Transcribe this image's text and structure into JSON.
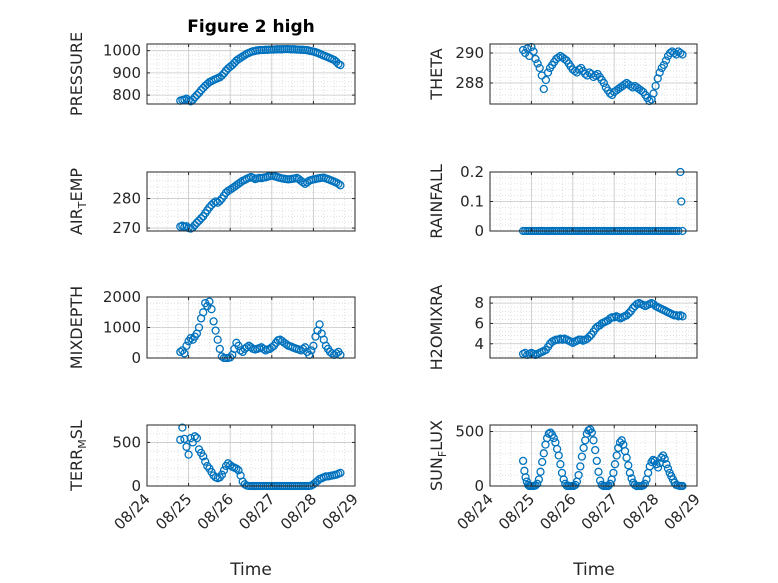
{
  "figure": {
    "title": "Figure 2 high",
    "background": "#ffffff",
    "marker_color": "#0072BD",
    "grid": true,
    "time_tick_labels": [
      "08/24",
      "08/25",
      "08/26",
      "08/27",
      "08/28",
      "08/29"
    ],
    "xlabel": "Time"
  },
  "chart_data": [
    {
      "type": "scatter",
      "name": "pressure",
      "ylabel": "PRESSURE",
      "ylim": [
        760,
        1030
      ],
      "yticks": [
        800,
        900,
        1000
      ],
      "x": [
        0.8,
        0.85,
        0.9,
        0.95,
        1.0,
        1.05,
        1.1,
        1.15,
        1.2,
        1.25,
        1.3,
        1.35,
        1.4,
        1.45,
        1.5,
        1.55,
        1.6,
        1.65,
        1.7,
        1.75,
        1.8,
        1.85,
        1.9,
        1.95,
        2.0,
        2.05,
        2.1,
        2.15,
        2.2,
        2.25,
        2.3,
        2.35,
        2.4,
        2.45,
        2.5,
        2.55,
        2.6,
        2.65,
        2.7,
        2.75,
        2.8,
        2.85,
        2.9,
        2.95,
        3.0,
        3.05,
        3.1,
        3.15,
        3.2,
        3.25,
        3.3,
        3.35,
        3.4,
        3.45,
        3.5,
        3.55,
        3.6,
        3.65,
        3.7,
        3.75,
        3.8,
        3.85,
        3.9,
        3.95,
        4.0,
        4.05,
        4.1,
        4.15,
        4.2,
        4.25,
        4.3,
        4.35,
        4.4,
        4.45,
        4.5,
        4.55,
        4.6,
        4.65
      ],
      "y": [
        775,
        778,
        780,
        784,
        776,
        772,
        779,
        790,
        800,
        810,
        822,
        832,
        842,
        850,
        858,
        863,
        868,
        872,
        876,
        880,
        888,
        898,
        910,
        920,
        928,
        935,
        945,
        955,
        962,
        968,
        974,
        980,
        986,
        990,
        994,
        997,
        999,
        1001,
        1002,
        1003,
        1003,
        1004,
        1004,
        1005,
        1005,
        1005,
        1006,
        1006,
        1006,
        1006,
        1007,
        1007,
        1007,
        1006,
        1006,
        1006,
        1005,
        1005,
        1004,
        1004,
        1003,
        1002,
        1000,
        998,
        996,
        993,
        990,
        986,
        982,
        978,
        974,
        970,
        966,
        962,
        958,
        950,
        940,
        935
      ]
    },
    {
      "type": "scatter",
      "name": "theta",
      "ylabel": "THETA",
      "ylim": [
        286.6,
        290.6
      ],
      "yticks": [
        288,
        290
      ],
      "x": [
        0.8,
        0.85,
        0.9,
        0.95,
        1.0,
        1.05,
        1.1,
        1.15,
        1.2,
        1.25,
        1.3,
        1.35,
        1.4,
        1.45,
        1.5,
        1.55,
        1.6,
        1.65,
        1.7,
        1.75,
        1.8,
        1.85,
        1.9,
        1.95,
        2.0,
        2.05,
        2.1,
        2.15,
        2.2,
        2.25,
        2.3,
        2.35,
        2.4,
        2.45,
        2.5,
        2.55,
        2.6,
        2.65,
        2.7,
        2.75,
        2.8,
        2.85,
        2.9,
        2.95,
        3.0,
        3.05,
        3.1,
        3.15,
        3.2,
        3.25,
        3.3,
        3.35,
        3.4,
        3.45,
        3.5,
        3.55,
        3.6,
        3.65,
        3.7,
        3.75,
        3.8,
        3.85,
        3.9,
        3.95,
        4.0,
        4.05,
        4.1,
        4.15,
        4.2,
        4.25,
        4.3,
        4.35,
        4.4,
        4.45,
        4.5,
        4.55,
        4.6,
        4.65
      ],
      "y": [
        290.2,
        290.0,
        290.3,
        289.8,
        290.4,
        290.1,
        289.6,
        289.3,
        289.0,
        288.5,
        287.6,
        288.2,
        288.7,
        289.0,
        289.2,
        289.4,
        289.6,
        289.7,
        289.8,
        289.7,
        289.6,
        289.5,
        289.3,
        289.1,
        288.9,
        288.8,
        288.7,
        288.9,
        289.0,
        288.8,
        288.6,
        288.5,
        288.7,
        288.6,
        288.4,
        288.5,
        288.6,
        288.4,
        288.2,
        288.0,
        287.7,
        287.5,
        287.3,
        287.2,
        287.4,
        287.5,
        287.6,
        287.7,
        287.8,
        287.9,
        288.0,
        287.9,
        287.8,
        287.7,
        287.8,
        287.7,
        287.6,
        287.5,
        287.4,
        287.2,
        287.0,
        286.8,
        286.9,
        287.3,
        287.8,
        288.3,
        288.7,
        289.0,
        289.2,
        289.5,
        289.8,
        290.0,
        290.1,
        290.0,
        289.9,
        290.1,
        290.0,
        289.9
      ]
    },
    {
      "type": "scatter",
      "name": "air_temp",
      "ylabel": "AIR_TEMP",
      "ylim": [
        269,
        289
      ],
      "yticks": [
        270,
        280
      ],
      "x": [
        0.8,
        0.85,
        0.9,
        0.95,
        1.0,
        1.05,
        1.1,
        1.15,
        1.2,
        1.25,
        1.3,
        1.35,
        1.4,
        1.45,
        1.5,
        1.55,
        1.6,
        1.65,
        1.7,
        1.75,
        1.8,
        1.85,
        1.9,
        1.95,
        2.0,
        2.05,
        2.1,
        2.15,
        2.2,
        2.25,
        2.3,
        2.35,
        2.4,
        2.45,
        2.5,
        2.55,
        2.6,
        2.65,
        2.7,
        2.75,
        2.8,
        2.85,
        2.9,
        2.95,
        3.0,
        3.05,
        3.1,
        3.15,
        3.2,
        3.25,
        3.3,
        3.35,
        3.4,
        3.45,
        3.5,
        3.55,
        3.6,
        3.65,
        3.7,
        3.75,
        3.8,
        3.85,
        3.9,
        3.95,
        4.0,
        4.05,
        4.1,
        4.15,
        4.2,
        4.25,
        4.3,
        4.35,
        4.4,
        4.45,
        4.5,
        4.55,
        4.6,
        4.65
      ],
      "y": [
        270.5,
        270.8,
        270.4,
        270.6,
        270.0,
        269.8,
        270.2,
        271.0,
        271.8,
        272.5,
        273.3,
        274.0,
        275.0,
        276.0,
        277.0,
        277.8,
        278.5,
        279.0,
        278.6,
        279.2,
        280.0,
        281.0,
        282.0,
        282.6,
        283.0,
        283.5,
        284.0,
        284.5,
        285.0,
        285.5,
        286.0,
        286.3,
        286.7,
        287.0,
        287.3,
        287.0,
        286.6,
        286.8,
        287.0,
        286.9,
        287.1,
        287.2,
        287.4,
        287.6,
        287.8,
        287.6,
        287.4,
        287.2,
        287.0,
        286.8,
        286.7,
        286.6,
        286.5,
        286.6,
        286.7,
        286.8,
        287.0,
        286.6,
        286.0,
        285.5,
        285.0,
        285.5,
        286.0,
        286.3,
        286.5,
        286.6,
        286.8,
        286.9,
        287.0,
        287.1,
        286.8,
        286.6,
        286.3,
        286.0,
        285.7,
        285.4,
        285.0,
        284.5
      ]
    },
    {
      "type": "scatter",
      "name": "rainfall",
      "ylabel": "RAINFALL",
      "ylim": [
        0,
        0.2
      ],
      "yticks": [
        0,
        0.1,
        0.2
      ],
      "x": [
        0.8,
        0.85,
        0.9,
        0.95,
        1.0,
        1.05,
        1.1,
        1.15,
        1.2,
        1.25,
        1.3,
        1.35,
        1.4,
        1.45,
        1.5,
        1.55,
        1.6,
        1.65,
        1.7,
        1.75,
        1.8,
        1.85,
        1.9,
        1.95,
        2.0,
        2.05,
        2.1,
        2.15,
        2.2,
        2.25,
        2.3,
        2.35,
        2.4,
        2.45,
        2.5,
        2.55,
        2.6,
        2.65,
        2.7,
        2.75,
        2.8,
        2.85,
        2.9,
        2.95,
        3.0,
        3.05,
        3.1,
        3.15,
        3.2,
        3.25,
        3.3,
        3.35,
        3.4,
        3.45,
        3.5,
        3.55,
        3.6,
        3.65,
        3.7,
        3.75,
        3.8,
        3.85,
        3.9,
        3.95,
        4.0,
        4.05,
        4.1,
        4.15,
        4.2,
        4.25,
        4.3,
        4.35,
        4.4,
        4.45,
        4.5,
        4.55,
        4.6,
        4.62,
        4.65
      ],
      "y": [
        0,
        0,
        0,
        0,
        0,
        0,
        0,
        0,
        0,
        0,
        0,
        0,
        0,
        0,
        0,
        0,
        0,
        0,
        0,
        0,
        0,
        0,
        0,
        0,
        0,
        0,
        0,
        0,
        0,
        0,
        0,
        0,
        0,
        0,
        0,
        0,
        0,
        0,
        0,
        0,
        0,
        0,
        0,
        0,
        0,
        0,
        0,
        0,
        0,
        0,
        0,
        0,
        0,
        0,
        0,
        0,
        0,
        0,
        0,
        0,
        0,
        0,
        0,
        0,
        0,
        0,
        0,
        0,
        0,
        0,
        0,
        0,
        0,
        0,
        0,
        0,
        0.2,
        0.1,
        0
      ]
    },
    {
      "type": "scatter",
      "name": "mixdepth",
      "ylabel": "MIXDEPTH",
      "ylim": [
        0,
        2000
      ],
      "yticks": [
        0,
        1000,
        2000
      ],
      "x": [
        0.8,
        0.85,
        0.9,
        0.95,
        1.0,
        1.05,
        1.1,
        1.15,
        1.2,
        1.25,
        1.3,
        1.35,
        1.4,
        1.45,
        1.5,
        1.55,
        1.6,
        1.65,
        1.7,
        1.75,
        1.8,
        1.85,
        1.9,
        1.95,
        2.0,
        2.05,
        2.1,
        2.15,
        2.2,
        2.25,
        2.3,
        2.35,
        2.4,
        2.45,
        2.5,
        2.55,
        2.6,
        2.65,
        2.7,
        2.75,
        2.8,
        2.85,
        2.9,
        2.95,
        3.0,
        3.05,
        3.1,
        3.15,
        3.2,
        3.25,
        3.3,
        3.35,
        3.4,
        3.45,
        3.5,
        3.55,
        3.6,
        3.65,
        3.7,
        3.75,
        3.8,
        3.85,
        3.9,
        3.95,
        4.0,
        4.05,
        4.1,
        4.15,
        4.2,
        4.25,
        4.3,
        4.35,
        4.4,
        4.45,
        4.5,
        4.55,
        4.6,
        4.65
      ],
      "y": [
        200,
        250,
        150,
        400,
        550,
        650,
        600,
        700,
        800,
        1000,
        1300,
        1500,
        1800,
        1700,
        1850,
        1600,
        1200,
        900,
        600,
        300,
        50,
        0,
        0,
        0,
        20,
        100,
        300,
        500,
        400,
        250,
        200,
        300,
        350,
        400,
        350,
        300,
        280,
        300,
        320,
        350,
        300,
        250,
        280,
        300,
        350,
        400,
        500,
        580,
        600,
        550,
        500,
        450,
        400,
        380,
        350,
        320,
        300,
        280,
        250,
        300,
        350,
        200,
        100,
        250,
        400,
        700,
        900,
        1100,
        800,
        600,
        400,
        300,
        200,
        150,
        100,
        150,
        200,
        100
      ]
    },
    {
      "type": "scatter",
      "name": "h2omixra",
      "ylabel": "H2OMIXRA",
      "ylim": [
        2.6,
        8.6
      ],
      "yticks": [
        4,
        6,
        8
      ],
      "x": [
        0.8,
        0.85,
        0.9,
        0.95,
        1.0,
        1.05,
        1.1,
        1.15,
        1.2,
        1.25,
        1.3,
        1.35,
        1.4,
        1.45,
        1.5,
        1.55,
        1.6,
        1.65,
        1.7,
        1.75,
        1.8,
        1.85,
        1.9,
        1.95,
        2.0,
        2.05,
        2.1,
        2.15,
        2.2,
        2.25,
        2.3,
        2.35,
        2.4,
        2.45,
        2.5,
        2.55,
        2.6,
        2.65,
        2.7,
        2.75,
        2.8,
        2.85,
        2.9,
        2.95,
        3.0,
        3.05,
        3.1,
        3.15,
        3.2,
        3.25,
        3.3,
        3.35,
        3.4,
        3.45,
        3.5,
        3.55,
        3.6,
        3.65,
        3.7,
        3.75,
        3.8,
        3.85,
        3.9,
        3.95,
        4.0,
        4.05,
        4.1,
        4.15,
        4.2,
        4.25,
        4.3,
        4.35,
        4.4,
        4.45,
        4.5,
        4.55,
        4.6,
        4.65
      ],
      "y": [
        3.0,
        3.1,
        2.9,
        3.0,
        3.1,
        3.0,
        2.9,
        3.0,
        3.1,
        3.2,
        3.3,
        3.4,
        3.7,
        4.0,
        4.2,
        4.3,
        4.4,
        4.4,
        4.5,
        4.4,
        4.5,
        4.4,
        4.3,
        4.2,
        4.1,
        4.2,
        4.3,
        4.4,
        4.4,
        4.3,
        4.4,
        4.5,
        4.7,
        4.9,
        5.2,
        5.5,
        5.7,
        5.8,
        6.0,
        6.1,
        6.2,
        6.3,
        6.5,
        6.6,
        6.6,
        6.7,
        6.6,
        6.5,
        6.6,
        6.7,
        6.8,
        7.0,
        7.2,
        7.5,
        7.7,
        7.9,
        8.0,
        7.9,
        7.8,
        7.7,
        7.8,
        7.9,
        8.0,
        7.9,
        7.7,
        7.6,
        7.5,
        7.4,
        7.3,
        7.2,
        7.1,
        7.0,
        6.9,
        6.8,
        6.8,
        6.7,
        6.8,
        6.7
      ]
    },
    {
      "type": "scatter",
      "name": "terr_msl",
      "ylabel": "TERR_MSL",
      "ylim": [
        0,
        700
      ],
      "yticks": [
        0,
        500
      ],
      "x": [
        0.8,
        0.85,
        0.9,
        0.95,
        1.0,
        1.05,
        1.1,
        1.15,
        1.2,
        1.25,
        1.3,
        1.35,
        1.4,
        1.45,
        1.5,
        1.55,
        1.6,
        1.65,
        1.7,
        1.75,
        1.8,
        1.85,
        1.9,
        1.95,
        2.0,
        2.05,
        2.1,
        2.15,
        2.2,
        2.25,
        2.3,
        2.35,
        2.4,
        2.45,
        2.5,
        2.55,
        2.6,
        2.65,
        2.7,
        2.75,
        2.8,
        2.85,
        2.9,
        2.95,
        3.0,
        3.05,
        3.1,
        3.15,
        3.2,
        3.25,
        3.3,
        3.35,
        3.4,
        3.45,
        3.5,
        3.55,
        3.6,
        3.65,
        3.7,
        3.75,
        3.8,
        3.85,
        3.9,
        3.95,
        4.0,
        4.05,
        4.1,
        4.15,
        4.2,
        4.25,
        4.3,
        4.35,
        4.4,
        4.45,
        4.5,
        4.55,
        4.6,
        4.65
      ],
      "y": [
        530,
        670,
        540,
        450,
        360,
        550,
        500,
        570,
        550,
        420,
        380,
        340,
        280,
        230,
        200,
        160,
        120,
        100,
        90,
        100,
        130,
        180,
        230,
        260,
        240,
        220,
        210,
        200,
        180,
        120,
        50,
        20,
        5,
        0,
        0,
        0,
        0,
        0,
        0,
        0,
        0,
        0,
        0,
        0,
        0,
        0,
        0,
        0,
        0,
        0,
        0,
        0,
        0,
        0,
        0,
        0,
        0,
        0,
        0,
        0,
        0,
        0,
        0,
        5,
        20,
        40,
        60,
        80,
        90,
        100,
        110,
        110,
        115,
        120,
        125,
        130,
        140,
        150
      ]
    },
    {
      "type": "scatter",
      "name": "sun_flux",
      "ylabel": "SUN_FLUX",
      "ylim": [
        0,
        560
      ],
      "yticks": [
        0,
        500
      ],
      "x": [
        0.8,
        0.83,
        0.86,
        0.89,
        0.92,
        0.95,
        0.98,
        1.02,
        1.06,
        1.1,
        1.14,
        1.18,
        1.22,
        1.26,
        1.3,
        1.34,
        1.38,
        1.42,
        1.46,
        1.5,
        1.54,
        1.58,
        1.62,
        1.66,
        1.7,
        1.74,
        1.78,
        1.82,
        1.86,
        1.9,
        1.94,
        1.98,
        2.02,
        2.06,
        2.1,
        2.14,
        2.18,
        2.22,
        2.26,
        2.3,
        2.34,
        2.38,
        2.42,
        2.46,
        2.5,
        2.54,
        2.58,
        2.62,
        2.66,
        2.7,
        2.74,
        2.78,
        2.82,
        2.86,
        2.9,
        2.94,
        2.98,
        3.02,
        3.06,
        3.1,
        3.14,
        3.18,
        3.22,
        3.26,
        3.3,
        3.34,
        3.38,
        3.42,
        3.46,
        3.5,
        3.54,
        3.58,
        3.62,
        3.66,
        3.7,
        3.74,
        3.78,
        3.82,
        3.86,
        3.9,
        3.94,
        3.98,
        4.02,
        4.06,
        4.1,
        4.14,
        4.18,
        4.22,
        4.26,
        4.3,
        4.34,
        4.38,
        4.42,
        4.46,
        4.5,
        4.54,
        4.58,
        4.62,
        4.65
      ],
      "y": [
        230,
        140,
        80,
        40,
        10,
        0,
        0,
        0,
        0,
        5,
        20,
        60,
        130,
        220,
        300,
        380,
        440,
        480,
        490,
        470,
        440,
        400,
        340,
        280,
        200,
        120,
        60,
        20,
        0,
        0,
        0,
        0,
        0,
        10,
        40,
        100,
        180,
        270,
        350,
        420,
        480,
        510,
        520,
        490,
        420,
        330,
        230,
        130,
        50,
        10,
        0,
        0,
        0,
        0,
        20,
        60,
        120,
        200,
        280,
        350,
        400,
        420,
        380,
        320,
        260,
        190,
        120,
        70,
        30,
        10,
        0,
        0,
        0,
        0,
        5,
        20,
        60,
        120,
        180,
        220,
        240,
        230,
        200,
        170,
        210,
        260,
        280,
        250,
        200,
        160,
        120,
        90,
        60,
        30,
        10,
        5,
        0,
        0,
        0
      ]
    }
  ]
}
